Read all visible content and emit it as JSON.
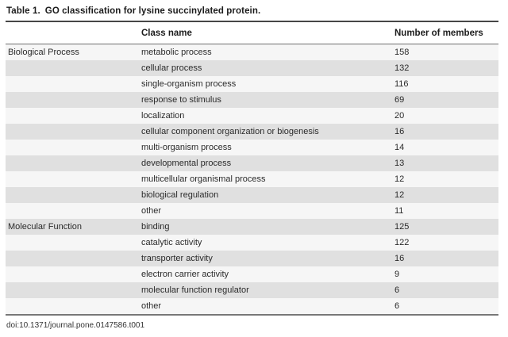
{
  "table": {
    "label": "Table 1.",
    "title": "GO classification for lysine succinylated protein.",
    "columns": {
      "category": "",
      "class_name": "Class name",
      "count": "Number of members"
    },
    "rows": [
      {
        "category": "Biological Process",
        "class_name": "metabolic process",
        "count": "158"
      },
      {
        "category": "",
        "class_name": "cellular process",
        "count": "132"
      },
      {
        "category": "",
        "class_name": "single-organism process",
        "count": "116"
      },
      {
        "category": "",
        "class_name": "response to stimulus",
        "count": "69"
      },
      {
        "category": "",
        "class_name": "localization",
        "count": "20"
      },
      {
        "category": "",
        "class_name": "cellular component organization or biogenesis",
        "count": "16"
      },
      {
        "category": "",
        "class_name": "multi-organism process",
        "count": "14"
      },
      {
        "category": "",
        "class_name": "developmental process",
        "count": "13"
      },
      {
        "category": "",
        "class_name": "multicellular organismal process",
        "count": "12"
      },
      {
        "category": "",
        "class_name": "biological regulation",
        "count": "12"
      },
      {
        "category": "",
        "class_name": "other",
        "count": "11"
      },
      {
        "category": "Molecular Function",
        "class_name": "binding",
        "count": "125"
      },
      {
        "category": "",
        "class_name": "catalytic activity",
        "count": "122"
      },
      {
        "category": "",
        "class_name": "transporter activity",
        "count": "16"
      },
      {
        "category": "",
        "class_name": "electron carrier activity",
        "count": "9"
      },
      {
        "category": "",
        "class_name": "molecular function regulator",
        "count": "6"
      },
      {
        "category": "",
        "class_name": "other",
        "count": "6"
      }
    ],
    "footer": "doi:10.1371/journal.pone.0147586.t001"
  }
}
